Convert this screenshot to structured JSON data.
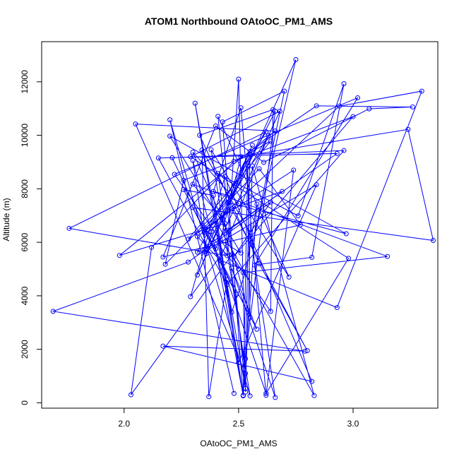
{
  "chart_data": {
    "type": "line",
    "title": "ATOM1 Northbound OAtoOC_PM1_AMS",
    "xlabel": "OAtoOC_PM1_AMS",
    "ylabel": "Altitude (m)",
    "xlim": [
      1.64,
      3.37
    ],
    "ylim": [
      -200,
      13500
    ],
    "x_ticks": [
      2.0,
      2.5,
      3.0
    ],
    "x_tick_labels": [
      "2.0",
      "2.5",
      "3.0"
    ],
    "y_ticks": [
      0,
      2000,
      4000,
      6000,
      8000,
      10000,
      12000
    ],
    "y_tick_labels": [
      "0",
      "2000",
      "4000",
      "6000",
      "8000",
      "10000",
      "12000"
    ],
    "grid": false,
    "marker": "open-circle",
    "color": "#0000ff",
    "series": [
      {
        "points": [
          [
            2.48,
            350
          ],
          [
            2.2,
            10580
          ],
          [
            2.55,
            260
          ],
          [
            2.38,
            9460
          ],
          [
            2.72,
            4700
          ],
          [
            2.41,
            10710
          ],
          [
            2.53,
            540
          ],
          [
            2.31,
            11200
          ],
          [
            2.52,
            280
          ],
          [
            2.43,
            10500
          ],
          [
            2.7,
            11650
          ],
          [
            2.56,
            5900
          ],
          [
            2.75,
            12830
          ],
          [
            2.32,
            4780
          ],
          [
            2.55,
            9270
          ],
          [
            2.53,
            1650
          ],
          [
            2.66,
            10900
          ],
          [
            2.35,
            5640
          ],
          [
            2.84,
            8150
          ],
          [
            2.5,
            1500
          ],
          [
            2.4,
            6800
          ],
          [
            2.83,
            270
          ],
          [
            2.56,
            8850
          ],
          [
            2.53,
            400
          ],
          [
            2.5,
            12100
          ],
          [
            2.45,
            5500
          ],
          [
            1.76,
            6520
          ],
          [
            2.62,
            10130
          ],
          [
            2.35,
            6370
          ],
          [
            2.94,
            11090
          ],
          [
            3.3,
            11650
          ],
          [
            2.93,
            3560
          ],
          [
            2.42,
            5330
          ],
          [
            2.32,
            6210
          ],
          [
            2.5,
            7460
          ],
          [
            2.3,
            9370
          ],
          [
            2.45,
            6450
          ],
          [
            2.93,
            9320
          ],
          [
            2.15,
            9150
          ],
          [
            2.45,
            4420
          ],
          [
            2.96,
            9430
          ],
          [
            2.21,
            9160
          ],
          [
            2.49,
            4050
          ],
          [
            2.26,
            7970
          ],
          [
            2.39,
            7750
          ],
          [
            2.52,
            260
          ],
          [
            2.54,
            8960
          ],
          [
            2.55,
            3200
          ],
          [
            2.44,
            6710
          ],
          [
            1.98,
            5510
          ],
          [
            2.66,
            10160
          ],
          [
            2.05,
            10420
          ],
          [
            2.53,
            1100
          ],
          [
            2.41,
            8570
          ],
          [
            2.76,
            6990
          ],
          [
            2.96,
            11930
          ],
          [
            2.82,
            5440
          ],
          [
            2.57,
            5150
          ],
          [
            3.02,
            11400
          ],
          [
            2.22,
            8540
          ],
          [
            2.64,
            3420
          ],
          [
            2.65,
            10960
          ],
          [
            2.33,
            10000
          ],
          [
            2.59,
            5200
          ],
          [
            2.8,
            1950
          ],
          [
            2.47,
            7250
          ],
          [
            2.69,
            7900
          ],
          [
            2.36,
            5850
          ],
          [
            2.32,
            5630
          ],
          [
            2.55,
            9400
          ],
          [
            2.84,
            11100
          ],
          [
            3.26,
            11060
          ],
          [
            3.07,
            10990
          ],
          [
            2.61,
            8990
          ],
          [
            2.4,
            10350
          ],
          [
            2.17,
            5450
          ],
          [
            2.77,
            6650
          ],
          [
            2.59,
            8750
          ],
          [
            2.35,
            6550
          ],
          [
            2.5,
            5000
          ],
          [
            2.47,
            5530
          ],
          [
            2.03,
            300
          ],
          [
            2.12,
            5810
          ],
          [
            2.48,
            9030
          ],
          [
            2.64,
            9780
          ],
          [
            2.28,
            6120
          ],
          [
            2.74,
            8700
          ],
          [
            2.62,
            280
          ],
          [
            2.51,
            11030
          ],
          [
            2.39,
            7900
          ],
          [
            2.47,
            7720
          ],
          [
            2.18,
            5180
          ],
          [
            2.26,
            8320
          ],
          [
            3.0,
            10700
          ],
          [
            2.48,
            5470
          ],
          [
            2.64,
            7500
          ],
          [
            2.28,
            5260
          ],
          [
            1.69,
            3420
          ],
          [
            2.79,
            1930
          ],
          [
            2.17,
            2120
          ],
          [
            2.82,
            800
          ],
          [
            2.44,
            8450
          ],
          [
            2.29,
            3970
          ],
          [
            2.43,
            5600
          ],
          [
            2.63,
            9990
          ],
          [
            2.38,
            6400
          ],
          [
            2.36,
            5580
          ],
          [
            2.3,
            9060
          ],
          [
            2.47,
            3390
          ],
          [
            2.53,
            4880
          ],
          [
            2.58,
            7430
          ],
          [
            2.52,
            270
          ],
          [
            2.4,
            5760
          ],
          [
            2.68,
            10900
          ],
          [
            2.29,
            9200
          ],
          [
            2.98,
            5400
          ],
          [
            2.62,
            350
          ],
          [
            2.45,
            4600
          ],
          [
            2.37,
            230
          ],
          [
            2.34,
            9450
          ],
          [
            2.55,
            6370
          ],
          [
            2.66,
            200
          ],
          [
            2.47,
            5030
          ],
          [
            2.58,
            2750
          ],
          [
            2.3,
            7300
          ],
          [
            3.35,
            6070
          ],
          [
            3.24,
            10220
          ],
          [
            2.51,
            9200
          ],
          [
            2.42,
            6080
          ],
          [
            2.51,
            5600
          ],
          [
            2.2,
            9970
          ],
          [
            2.97,
            6320
          ],
          [
            2.45,
            7500
          ],
          [
            2.56,
            9630
          ],
          [
            2.43,
            6900
          ],
          [
            2.3,
            8170
          ],
          [
            3.15,
            5470
          ],
          [
            2.52,
            4870
          ]
        ]
      }
    ]
  }
}
